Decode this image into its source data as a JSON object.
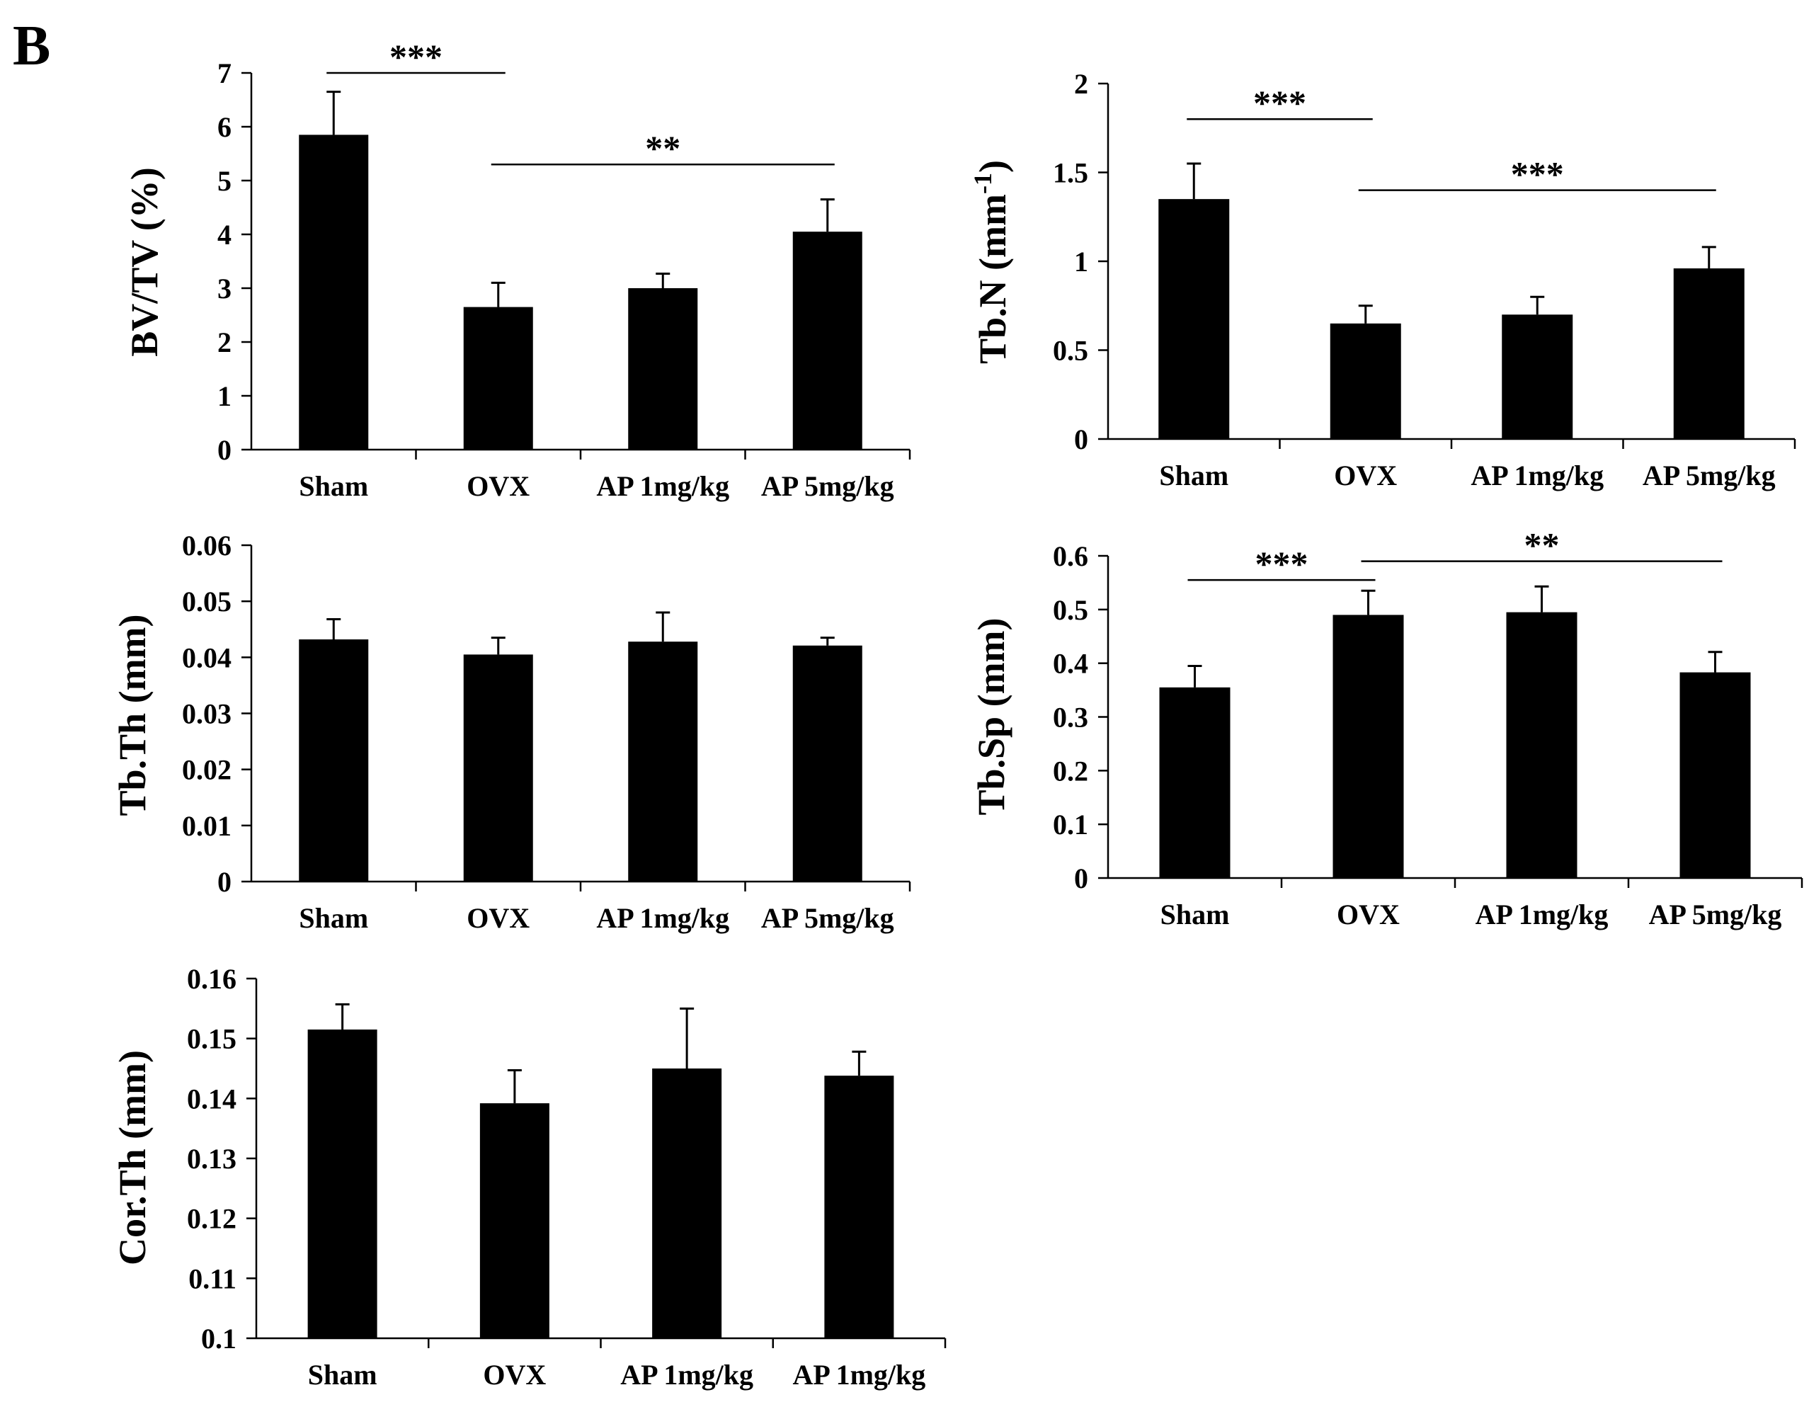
{
  "panel_label": "B",
  "colors": {
    "bar": "#000000",
    "axis": "#000000",
    "background": "#ffffff"
  },
  "chart_data": [
    {
      "type": "bar",
      "id": "bvtv",
      "title": "",
      "xlabel": "",
      "ylabel": "BV/TV (%)",
      "categories": [
        "Sham",
        "OVX",
        "AP 1mg/kg",
        "AP 5mg/kg"
      ],
      "values": [
        5.85,
        2.65,
        3.0,
        4.05
      ],
      "errors": [
        0.8,
        0.45,
        0.27,
        0.6
      ],
      "ylim": [
        0,
        7
      ],
      "yticks": [
        0,
        1,
        2,
        3,
        4,
        5,
        6,
        7
      ],
      "ytick_labels": [
        "0",
        "1",
        "2",
        "3",
        "4",
        "5",
        "6",
        "7"
      ],
      "significance": [
        {
          "from": 0,
          "to": 1,
          "label": "***",
          "y": 7.0
        },
        {
          "from": 1,
          "to": 3,
          "label": "**",
          "y": 5.3
        }
      ]
    },
    {
      "type": "bar",
      "id": "tbn",
      "title": "",
      "xlabel": "",
      "ylabel": "Tb.N (mm",
      "ylabel_sup": "-1",
      "ylabel_tail": ")",
      "categories": [
        "Sham",
        "OVX",
        "AP 1mg/kg",
        "AP 5mg/kg"
      ],
      "values": [
        1.35,
        0.65,
        0.7,
        0.96
      ],
      "errors": [
        0.2,
        0.1,
        0.1,
        0.12
      ],
      "ylim": [
        0,
        2
      ],
      "yticks": [
        0,
        0.5,
        1,
        1.5,
        2
      ],
      "ytick_labels": [
        "0",
        "0.5",
        "1",
        "1.5",
        "2"
      ],
      "significance": [
        {
          "from": 0,
          "to": 1,
          "label": "***",
          "y": 1.8
        },
        {
          "from": 1,
          "to": 3,
          "label": "***",
          "y": 1.4
        }
      ]
    },
    {
      "type": "bar",
      "id": "tbth",
      "title": "",
      "xlabel": "",
      "ylabel": "Tb.Th (mm)",
      "categories": [
        "Sham",
        "OVX",
        "AP 1mg/kg",
        "AP 5mg/kg"
      ],
      "values": [
        0.0432,
        0.0405,
        0.0428,
        0.0421
      ],
      "errors": [
        0.0036,
        0.003,
        0.0052,
        0.0014
      ],
      "ylim": [
        0,
        0.06
      ],
      "yticks": [
        0,
        0.01,
        0.02,
        0.03,
        0.04,
        0.05,
        0.06
      ],
      "ytick_labels": [
        "0",
        "0.01",
        "0.02",
        "0.03",
        "0.04",
        "0.05",
        "0.06"
      ],
      "significance": []
    },
    {
      "type": "bar",
      "id": "tbsp",
      "title": "",
      "xlabel": "",
      "ylabel": "Tb.Sp (mm)",
      "categories": [
        "Sham",
        "OVX",
        "AP 1mg/kg",
        "AP 5mg/kg"
      ],
      "values": [
        0.355,
        0.49,
        0.495,
        0.383
      ],
      "errors": [
        0.04,
        0.045,
        0.048,
        0.038
      ],
      "ylim": [
        0,
        0.6
      ],
      "yticks": [
        0,
        0.1,
        0.2,
        0.3,
        0.4,
        0.5,
        0.6
      ],
      "ytick_labels": [
        "0",
        "0.1",
        "0.2",
        "0.3",
        "0.4",
        "0.5",
        "0.6"
      ],
      "significance": [
        {
          "from": 0,
          "to": 1,
          "label": "***",
          "y": 0.555
        },
        {
          "from": 1,
          "to": 3,
          "label": "**",
          "y": 0.59
        }
      ]
    },
    {
      "type": "bar",
      "id": "corth",
      "title": "",
      "xlabel": "",
      "ylabel": "Cor.Th (mm)",
      "categories": [
        "Sham",
        "OVX",
        "AP 1mg/kg",
        "AP 1mg/kg"
      ],
      "values": [
        0.1515,
        0.1392,
        0.145,
        0.1438
      ],
      "errors": [
        0.0042,
        0.0055,
        0.01,
        0.004
      ],
      "ylim": [
        0.1,
        0.16
      ],
      "yticks": [
        0.1,
        0.11,
        0.12,
        0.13,
        0.14,
        0.15,
        0.16
      ],
      "ytick_labels": [
        "0.1",
        "0.11",
        "0.12",
        "0.13",
        "0.14",
        "0.15",
        "0.16"
      ],
      "significance": []
    }
  ]
}
